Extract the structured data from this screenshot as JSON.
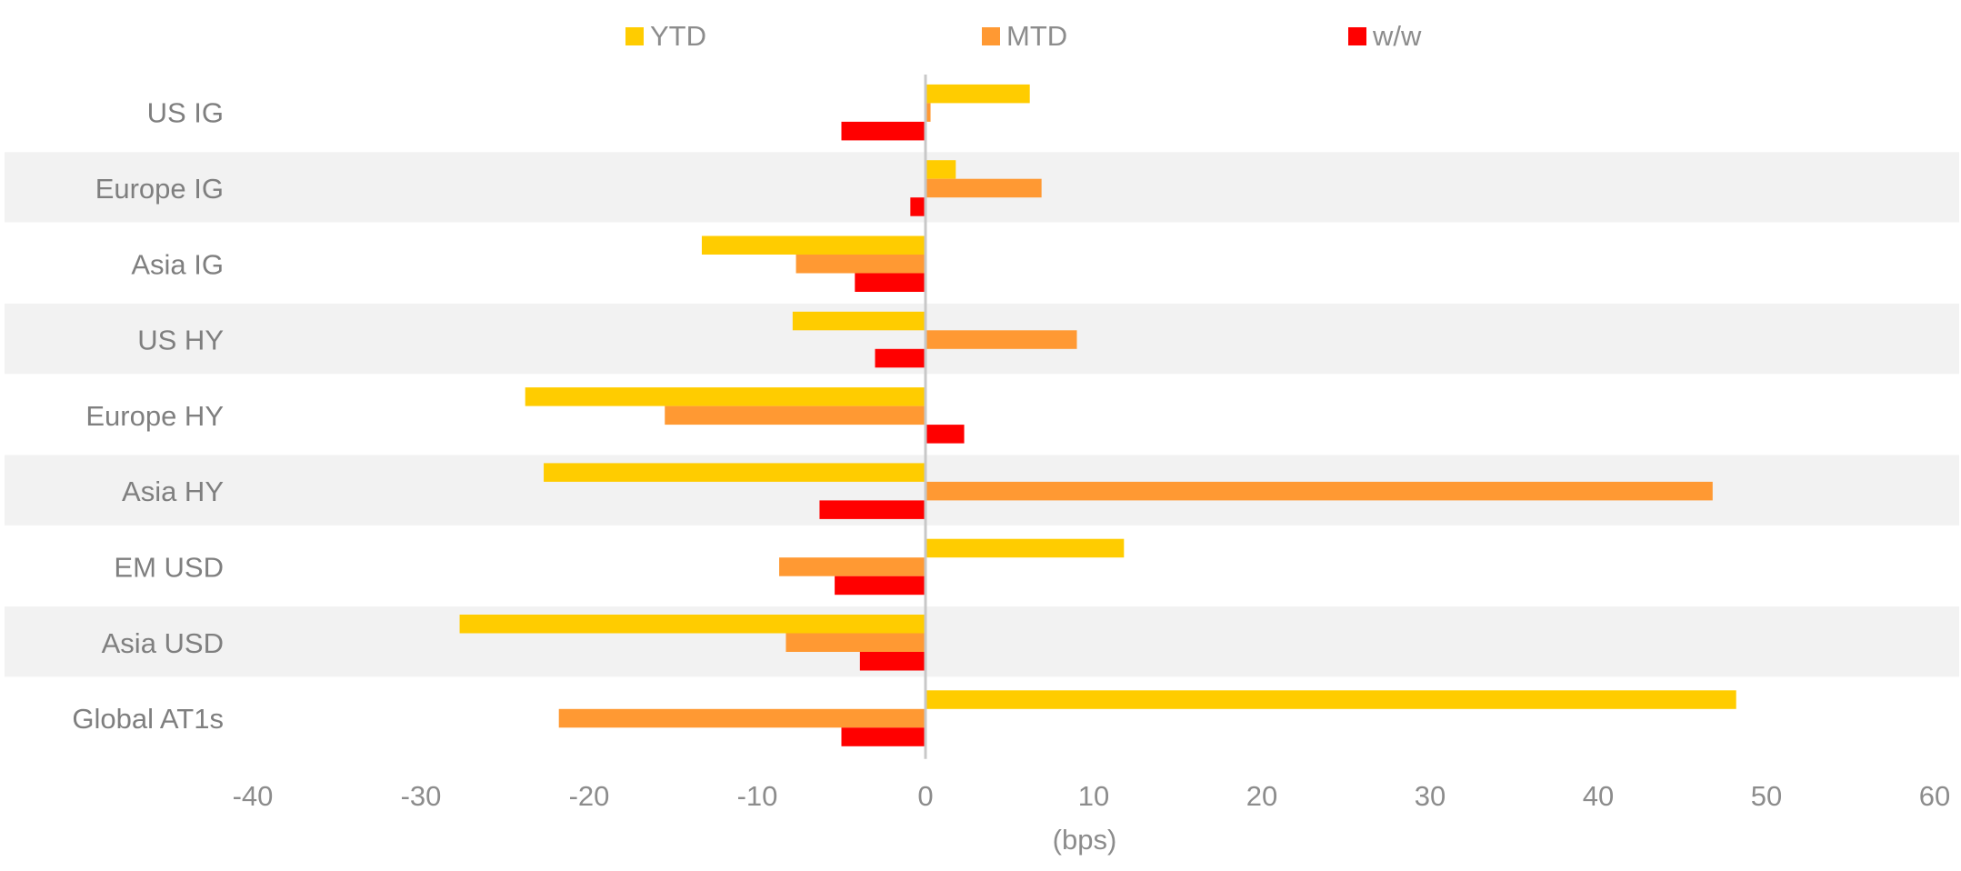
{
  "chart_data": {
    "type": "bar",
    "orientation": "horizontal",
    "categories": [
      "US IG",
      "Europe IG",
      "Asia IG",
      "US HY",
      "Europe HY",
      "Asia HY",
      "EM USD",
      "Asia USD",
      "Global AT1s"
    ],
    "series": [
      {
        "name": "YTD",
        "color": "#ffcc00",
        "values": [
          6.2,
          1.8,
          -13.3,
          -7.9,
          -23.8,
          -22.7,
          11.8,
          -27.7,
          48.2
        ]
      },
      {
        "name": "MTD",
        "color": "#ff9933",
        "values": [
          0.3,
          6.9,
          -7.7,
          9.0,
          -15.5,
          46.8,
          -8.7,
          -8.3,
          -21.8
        ]
      },
      {
        "name": "w/w",
        "color": "#ff0000",
        "values": [
          -5.0,
          -0.9,
          -4.2,
          -3.0,
          2.3,
          -6.3,
          -5.4,
          -3.9,
          -5.0
        ]
      }
    ],
    "xlabel": "(bps)",
    "ylabel": "",
    "xlim": [
      -40,
      60
    ],
    "xticks": [
      -40,
      -30,
      -20,
      -10,
      0,
      10,
      20,
      30,
      40,
      50,
      60
    ],
    "legend_position": "top-center",
    "alternating_row_shading": true,
    "shading_color": "#f2f2f2",
    "grid": false
  }
}
